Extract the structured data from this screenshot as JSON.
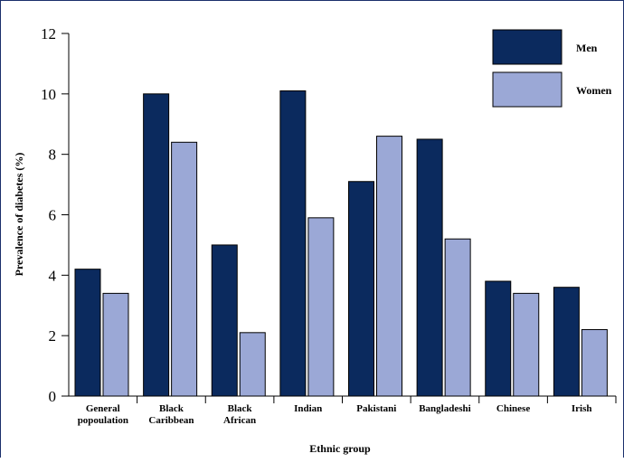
{
  "chart_data": {
    "type": "bar",
    "xlabel": "Ethnic group",
    "ylabel": "Prevalence of diabetes (%)",
    "ylim": [
      0,
      12
    ],
    "yticks": [
      0,
      2,
      4,
      6,
      8,
      10,
      12
    ],
    "categories": [
      [
        "General",
        "popoulation"
      ],
      [
        "Black",
        "Caribbean"
      ],
      [
        "Black",
        "African"
      ],
      [
        "Indian"
      ],
      [
        "Pakistani"
      ],
      [
        "Bangladeshi"
      ],
      [
        "Chinese"
      ],
      [
        "Irish"
      ]
    ],
    "series": [
      {
        "name": "Men",
        "color": "#0b2a5e",
        "values": [
          4.2,
          10.0,
          5.0,
          10.1,
          7.1,
          8.5,
          3.8,
          3.6
        ]
      },
      {
        "name": "Women",
        "color": "#9ba8d6",
        "values": [
          3.4,
          8.4,
          2.1,
          5.9,
          8.6,
          5.2,
          3.4,
          2.2
        ]
      }
    ],
    "legend_position": "top-right",
    "grid": false
  }
}
